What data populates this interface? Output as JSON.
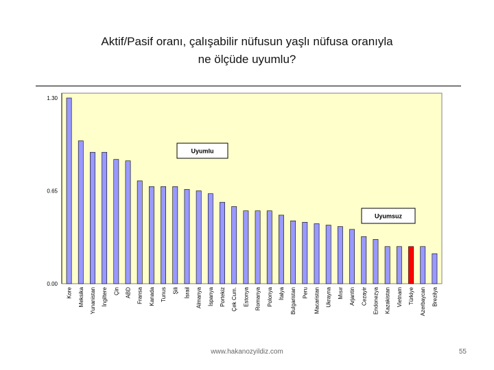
{
  "slide": {
    "title_line1": "Aktif/Pasif oranı, çalışabilir nüfusun yaşlı nüfusa oranıyla",
    "title_line2": "ne ölçüde uyumlu?",
    "footer_url": "www.hakanozyildiz.com",
    "page_number": "55"
  },
  "chart_data": {
    "type": "bar",
    "title": "",
    "xlabel": "",
    "ylabel": "",
    "ylim": [
      0,
      1.3
    ],
    "yticks": [
      "0.00",
      "0.65",
      "1.30"
    ],
    "grid": false,
    "legend": "none",
    "colors": {
      "plot_bg": "#FFFFCC",
      "bar": "#9999FF",
      "bar_highlight": "#FF0000",
      "bar_outline": "#000000"
    },
    "highlight_category": "Türkiye",
    "categories": [
      "Kore",
      "Meksika",
      "Yunanistan",
      "İngiltere",
      "Çin",
      "ABD",
      "Fransa",
      "Kanada",
      "Tunus",
      "Şili",
      "İsrail",
      "Almanya",
      "İspanya",
      "Portekiz",
      "Çek Cum.",
      "Estonya",
      "Romanya",
      "Polonya",
      "İtalya",
      "Bulgaristan",
      "Peru",
      "Macaristan",
      "Ukrayna",
      "Mısır",
      "Arjantin",
      "Cezayir",
      "Endonezya",
      "Kazakistan",
      "Vietnam",
      "Türkiye",
      "Azerbaycan",
      "Brezilya"
    ],
    "values": [
      1.3,
      1.0,
      0.92,
      0.92,
      0.87,
      0.86,
      0.72,
      0.68,
      0.68,
      0.68,
      0.66,
      0.65,
      0.63,
      0.57,
      0.54,
      0.51,
      0.51,
      0.51,
      0.48,
      0.44,
      0.43,
      0.42,
      0.41,
      0.4,
      0.38,
      0.33,
      0.31,
      0.26,
      0.26,
      0.26,
      0.26,
      0.21
    ],
    "annotations": [
      {
        "text": "Uyumlu"
      },
      {
        "text": "Uyumsuz"
      }
    ]
  }
}
